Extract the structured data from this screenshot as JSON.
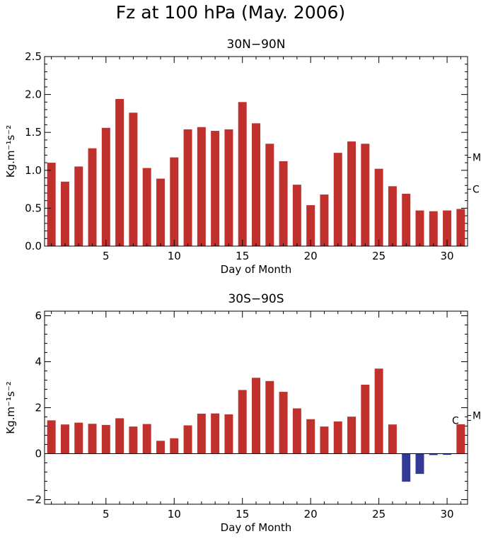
{
  "figure_title": "Fz at 100 hPa (May. 2006)",
  "colors": {
    "positive": "#c0302c",
    "negative": "#323a96",
    "axis": "#000000"
  },
  "chart_data": [
    {
      "type": "bar",
      "title": "30N−90N",
      "xlabel": "Day of Month",
      "ylabel": "Kg.m⁻¹s⁻²",
      "x": [
        1,
        2,
        3,
        4,
        5,
        6,
        7,
        8,
        9,
        10,
        11,
        12,
        13,
        14,
        15,
        16,
        17,
        18,
        19,
        20,
        21,
        22,
        23,
        24,
        25,
        26,
        27,
        28,
        29,
        30,
        31
      ],
      "values": [
        1.1,
        0.85,
        1.05,
        1.29,
        1.56,
        1.94,
        1.76,
        1.03,
        0.89,
        1.17,
        1.54,
        1.57,
        1.52,
        1.54,
        1.9,
        1.62,
        1.35,
        1.12,
        0.81,
        0.54,
        0.68,
        1.23,
        1.38,
        1.35,
        1.02,
        0.79,
        0.69,
        0.47,
        0.46,
        0.47,
        0.49
      ],
      "xlim": [
        0.5,
        31.5
      ],
      "ylim": [
        0,
        2.5
      ],
      "xticks": [
        5,
        10,
        15,
        20,
        25,
        30
      ],
      "xtick_labels": [
        "5",
        "10",
        "15",
        "20",
        "25",
        "30"
      ],
      "yticks": [
        0,
        0.5,
        1.0,
        1.5,
        2.0,
        2.5
      ],
      "ytick_labels": [
        "0.0",
        "0.5",
        "1.0",
        "1.5",
        "2.0",
        "2.5"
      ],
      "markers": [
        {
          "label": "M",
          "value": 1.17
        },
        {
          "label": "C",
          "value": 0.75
        }
      ],
      "grid": false
    },
    {
      "type": "bar",
      "title": "30S−90S",
      "xlabel": "Day of Month",
      "ylabel": "Kg.m⁻¹s⁻²",
      "x": [
        1,
        2,
        3,
        4,
        5,
        6,
        7,
        8,
        9,
        10,
        11,
        12,
        13,
        14,
        15,
        16,
        17,
        18,
        19,
        20,
        21,
        22,
        23,
        24,
        25,
        26,
        27,
        28,
        29,
        30,
        31
      ],
      "values": [
        1.45,
        1.27,
        1.35,
        1.3,
        1.25,
        1.54,
        1.18,
        1.29,
        0.56,
        0.67,
        1.23,
        1.74,
        1.75,
        1.71,
        2.77,
        3.3,
        3.16,
        2.69,
        1.97,
        1.5,
        1.18,
        1.4,
        1.61,
        3.0,
        3.7,
        1.27,
        -1.22,
        -0.88,
        -0.06,
        -0.05,
        1.28
      ],
      "xlim": [
        0.5,
        31.5
      ],
      "ylim": [
        -2.2,
        6.2
      ],
      "xticks": [
        5,
        10,
        15,
        20,
        25,
        30
      ],
      "xtick_labels": [
        "5",
        "10",
        "15",
        "20",
        "25",
        "30"
      ],
      "yticks": [
        -2,
        0,
        2,
        4,
        6
      ],
      "ytick_labels": [
        "−2",
        "0",
        "2",
        "4",
        "6"
      ],
      "markers": [
        {
          "label": "M",
          "value": 1.66
        },
        {
          "label": "C",
          "value": 1.45
        }
      ],
      "zero_line": true,
      "grid": false
    }
  ]
}
